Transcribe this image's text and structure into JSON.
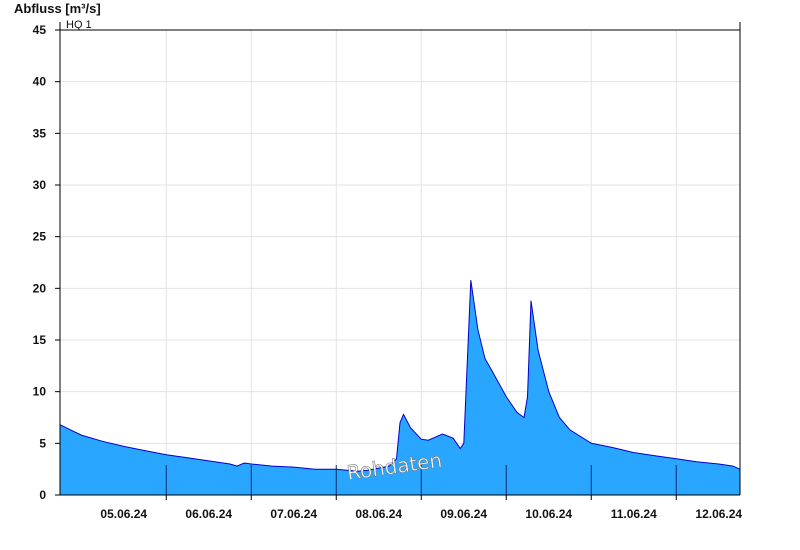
{
  "chart_data": {
    "type": "area",
    "title": "",
    "xlabel": "",
    "ylabel": "Abfluss [m³/s]",
    "ylim": [
      0,
      45
    ],
    "yticks": [
      0,
      5,
      10,
      15,
      20,
      25,
      30,
      35,
      40,
      45
    ],
    "xlim": [
      "04.06.24 18:00",
      "12.06.24 18:00"
    ],
    "x_tick_labels": [
      "05.06.24",
      "06.06.24",
      "07.06.24",
      "08.06.24",
      "09.06.24",
      "10.06.24",
      "11.06.24",
      "12.06.24"
    ],
    "grid": true,
    "reference_line": {
      "label": "HQ 1",
      "value": 45
    },
    "watermark": "Rohdaten",
    "colors": {
      "fill": "#29a6ff",
      "line": "#0000cc",
      "grid": "#e3e3e3"
    },
    "series": [
      {
        "x": [
          "04.06.24 18:00",
          "04.06.24 21:00",
          "05.06.24 00:00",
          "05.06.24 06:00",
          "05.06.24 12:00",
          "05.06.24 18:00",
          "06.06.24 00:00",
          "06.06.24 06:00",
          "06.06.24 12:00",
          "06.06.24 18:00",
          "06.06.24 20:00",
          "06.06.24 22:00",
          "07.06.24 00:00",
          "07.06.24 06:00",
          "07.06.24 12:00",
          "07.06.24 18:00",
          "08.06.24 00:00",
          "08.06.24 06:00",
          "08.06.24 09:00",
          "08.06.24 12:00",
          "08.06.24 15:00",
          "08.06.24 17:00",
          "08.06.24 18:00",
          "08.06.24 19:00",
          "08.06.24 21:00",
          "09.06.24 00:00",
          "09.06.24 02:00",
          "09.06.24 06:00",
          "09.06.24 09:00",
          "09.06.24 10:00",
          "09.06.24 11:00",
          "09.06.24 12:00",
          "09.06.24 14:00",
          "09.06.24 16:00",
          "09.06.24 18:00",
          "09.06.24 20:00",
          "10.06.24 00:00",
          "10.06.24 03:00",
          "10.06.24 05:00",
          "10.06.24 06:00",
          "10.06.24 07:00",
          "10.06.24 09:00",
          "10.06.24 12:00",
          "10.06.24 15:00",
          "10.06.24 18:00",
          "11.06.24 00:00",
          "11.06.24 06:00",
          "11.06.24 12:00",
          "11.06.24 18:00",
          "12.06.24 00:00",
          "12.06.24 06:00",
          "12.06.24 12:00",
          "12.06.24 16:00",
          "12.06.24 18:00"
        ],
        "y": [
          6.8,
          6.3,
          5.8,
          5.2,
          4.7,
          4.3,
          3.9,
          3.6,
          3.3,
          3.0,
          2.8,
          3.1,
          3.0,
          2.8,
          2.7,
          2.5,
          2.5,
          2.3,
          2.4,
          2.6,
          2.8,
          3.5,
          7.0,
          7.8,
          6.5,
          5.4,
          5.3,
          5.9,
          5.5,
          5.0,
          4.5,
          5.0,
          20.8,
          16.0,
          13.2,
          12.0,
          9.5,
          8.0,
          7.5,
          9.5,
          18.8,
          14.0,
          10.0,
          7.5,
          6.3,
          5.0,
          4.6,
          4.1,
          3.8,
          3.5,
          3.2,
          3.0,
          2.8,
          2.5
        ]
      }
    ]
  }
}
